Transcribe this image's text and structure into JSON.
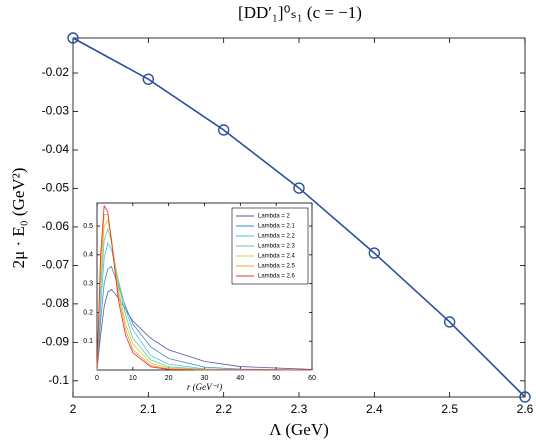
{
  "chart_data": [
    {
      "type": "line",
      "title": "[DD′₁]⁰ₛ₁ (c = −1)",
      "x_label": "Λ (GeV)",
      "y_label": "2μ · E₀ (GeV²)",
      "x": [
        2,
        2.1,
        2.2,
        2.3,
        2.4,
        2.5,
        2.6
      ],
      "values": [
        -0.0109,
        -0.0216,
        -0.0348,
        -0.0499,
        -0.0668,
        -0.0847,
        -0.1042
      ],
      "color": "#2a4fa0",
      "marker": "circle",
      "xlim": [
        2,
        2.6
      ],
      "xticks": [
        2,
        2.1,
        2.2,
        2.3,
        2.4,
        2.5,
        2.6
      ],
      "ylim": [
        -0.1042,
        -0.0109
      ],
      "yticks": [
        -0.1,
        -0.09,
        -0.08,
        -0.07,
        -0.06,
        -0.05,
        -0.04,
        -0.03,
        -0.02
      ]
    },
    {
      "type": "line",
      "x_label": "r (GeV⁻¹)",
      "x": [
        0,
        1,
        2,
        3,
        4,
        6,
        8,
        10,
        15,
        20,
        30,
        40,
        60
      ],
      "series": [
        {
          "name": "Lambda = 2",
          "color": "#4a5aa8",
          "values": [
            0,
            0.12,
            0.22,
            0.27,
            0.28,
            0.25,
            0.21,
            0.17,
            0.11,
            0.07,
            0.03,
            0.012,
            0.002
          ]
        },
        {
          "name": "Lambda = 2.1",
          "color": "#3f86c8",
          "values": [
            0,
            0.17,
            0.3,
            0.35,
            0.36,
            0.29,
            0.22,
            0.16,
            0.08,
            0.04,
            0.01,
            0.003,
            0
          ]
        },
        {
          "name": "Lambda = 2.2",
          "color": "#4cc0d8",
          "values": [
            0,
            0.22,
            0.39,
            0.44,
            0.42,
            0.31,
            0.21,
            0.14,
            0.05,
            0.02,
            0.004,
            0.001,
            0
          ]
        },
        {
          "name": "Lambda = 2.3",
          "color": "#6cc8a0",
          "values": [
            0,
            0.27,
            0.45,
            0.49,
            0.45,
            0.3,
            0.19,
            0.11,
            0.035,
            0.011,
            0.002,
            0,
            0
          ]
        },
        {
          "name": "Lambda = 2.4",
          "color": "#c8d040",
          "values": [
            0,
            0.31,
            0.5,
            0.52,
            0.46,
            0.28,
            0.16,
            0.09,
            0.024,
            0.007,
            0.001,
            0,
            0
          ]
        },
        {
          "name": "Lambda = 2.5",
          "color": "#f0a030",
          "values": [
            0,
            0.36,
            0.54,
            0.54,
            0.46,
            0.26,
            0.14,
            0.07,
            0.016,
            0.004,
            0,
            0,
            0
          ]
        },
        {
          "name": "Lambda = 2.6",
          "color": "#e83030",
          "values": [
            0,
            0.4,
            0.57,
            0.55,
            0.45,
            0.24,
            0.12,
            0.06,
            0.011,
            0.002,
            0,
            0,
            0
          ]
        }
      ],
      "xlim": [
        0,
        60
      ],
      "xticks": [
        0,
        10,
        20,
        30,
        40,
        50,
        60
      ],
      "ylim": [
        0,
        0.58
      ],
      "yticks": [
        0.1,
        0.2,
        0.3,
        0.4,
        0.5
      ],
      "legend": "upper right"
    }
  ]
}
